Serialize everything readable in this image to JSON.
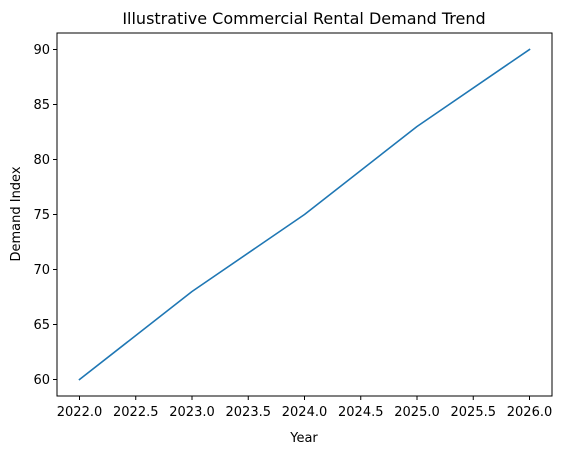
{
  "chart_data": {
    "type": "line",
    "title": "Illustrative Commercial Rental Demand Trend",
    "xlabel": "Year",
    "ylabel": "Demand Index",
    "xlim": [
      2021.8,
      2026.2
    ],
    "ylim": [
      58.5,
      91.5
    ],
    "xticks": [
      2022.0,
      2022.5,
      2023.0,
      2023.5,
      2024.0,
      2024.5,
      2025.0,
      2025.5,
      2026.0
    ],
    "xtick_labels": [
      "2022.0",
      "2022.5",
      "2023.0",
      "2023.5",
      "2024.0",
      "2024.5",
      "2025.0",
      "2025.5",
      "2026.0"
    ],
    "yticks": [
      60,
      65,
      70,
      75,
      80,
      85,
      90
    ],
    "ytick_labels": [
      "60",
      "65",
      "70",
      "75",
      "80",
      "85",
      "90"
    ],
    "grid": false,
    "series": [
      {
        "x": [
          2022,
          2023,
          2024,
          2025,
          2026
        ],
        "y": [
          60,
          68,
          75,
          83,
          90
        ],
        "color": "#1f77b4"
      }
    ]
  }
}
